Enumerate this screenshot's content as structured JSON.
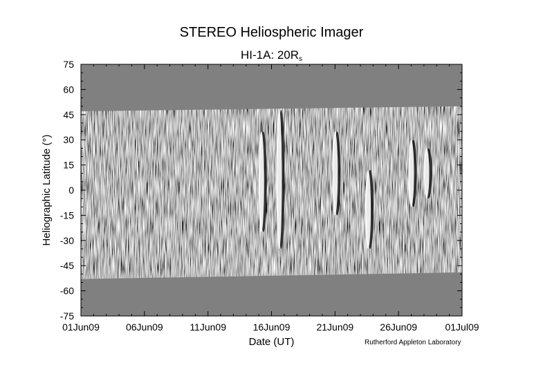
{
  "header": {
    "title": "STEREO Heliospheric Imager",
    "subtitle_main": "HI-1A: 20R",
    "subtitle_sub": "s"
  },
  "footer": {
    "credit": "Rutherford Appleton Laboratory"
  },
  "colors": {
    "background": "#ffffff",
    "no_data": "#808080",
    "text": "#000000"
  },
  "chart_data": {
    "type": "heatmap",
    "title": "STEREO Heliospheric Imager",
    "subtitle": "HI-1A: 20Rs",
    "xlabel": "Date (UT)",
    "ylabel": "Heliographic Latitude (°)",
    "x_range": [
      "01Jun09",
      "01Jul09"
    ],
    "x_ticks": [
      "01Jun09",
      "06Jun09",
      "11Jun09",
      "16Jun09",
      "21Jun09",
      "26Jun09",
      "01Jul09"
    ],
    "x_tick_days": [
      0,
      5,
      10,
      15,
      20,
      25,
      30
    ],
    "ylim": [
      -75,
      75
    ],
    "y_ticks": [
      75,
      60,
      45,
      30,
      15,
      0,
      -15,
      -30,
      -45,
      -60,
      -75
    ],
    "colormap": "grayscale running-difference",
    "data_coverage": {
      "start_lat_range": [
        -53,
        47
      ],
      "end_lat_range": [
        -49,
        50
      ]
    },
    "bright_features": [
      {
        "day": 14.2,
        "lat_range": [
          -25,
          35
        ]
      },
      {
        "day": 15.6,
        "lat_range": [
          -35,
          48
        ]
      },
      {
        "day": 20.0,
        "lat_range": [
          -15,
          35
        ]
      },
      {
        "day": 22.6,
        "lat_range": [
          -35,
          12
        ]
      },
      {
        "day": 26.0,
        "lat_range": [
          -10,
          30
        ]
      },
      {
        "day": 27.2,
        "lat_range": [
          -5,
          25
        ]
      }
    ],
    "grid": false,
    "legend": "none"
  }
}
